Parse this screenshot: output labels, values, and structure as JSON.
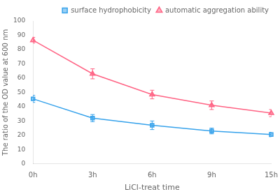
{
  "chart_data": {
    "type": "line",
    "xlabel": "LiCl-treat time",
    "ylabel": "The ratio of the OD value at 600 nm",
    "categories": [
      "0h",
      "3h",
      "6h",
      "9h",
      "15h"
    ],
    "series": [
      {
        "name": "surface hydrophobicity",
        "marker": "square",
        "values": [
          45.5,
          32.0,
          27.0,
          23.0,
          20.5
        ],
        "errors": [
          2.5,
          2.5,
          3.0,
          2.0,
          1.5
        ]
      },
      {
        "name": "automatic aggregation ability",
        "marker": "triangle",
        "values": [
          86.5,
          63.0,
          48.5,
          41.0,
          35.5
        ],
        "errors": [
          2.0,
          3.5,
          3.0,
          3.0,
          2.5
        ]
      }
    ],
    "ylim": [
      0,
      100
    ],
    "yticks": [
      0,
      10,
      20,
      30,
      40,
      50,
      60,
      70,
      80,
      90,
      100
    ],
    "grid": false,
    "legend": "upper right"
  }
}
